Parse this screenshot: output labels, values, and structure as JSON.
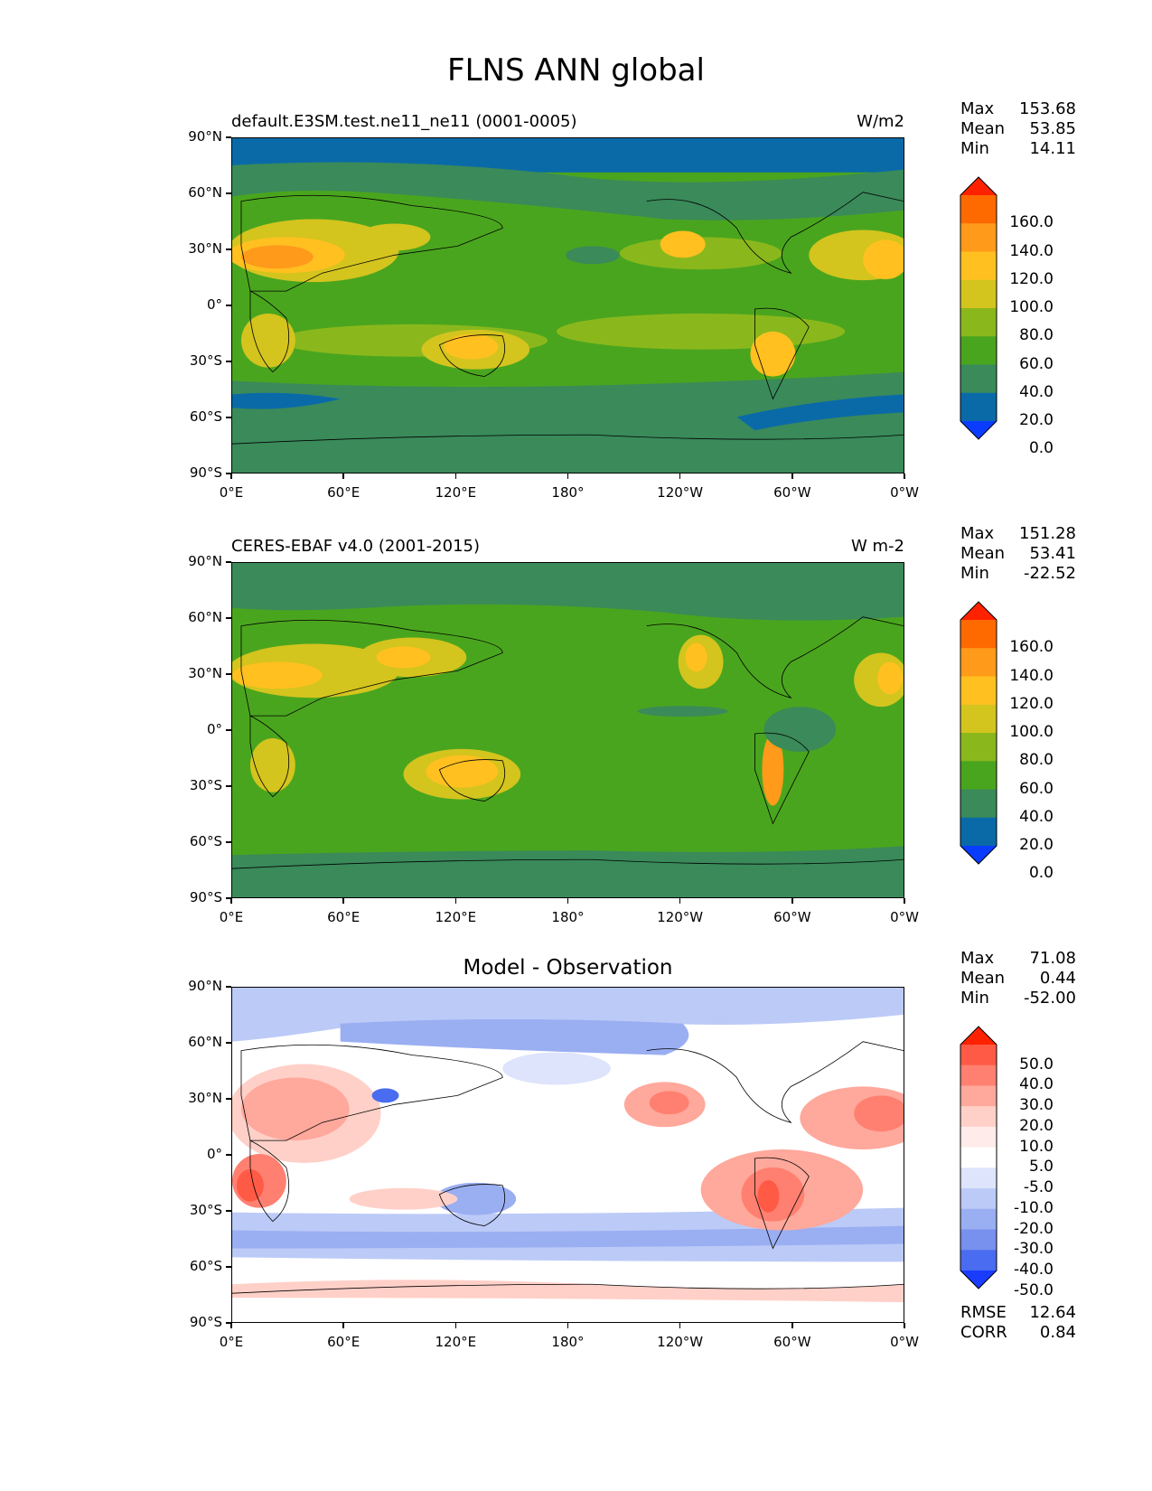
{
  "title": "FLNS ANN global",
  "lat_labels": [
    "90°N",
    "60°N",
    "30°N",
    "0°",
    "30°S",
    "60°S",
    "90°S"
  ],
  "lon_labels": [
    "0°E",
    "60°E",
    "120°E",
    "180°",
    "120°W",
    "60°W",
    "0°W"
  ],
  "panels": [
    {
      "title": "default.E3SM.test.ne11_ne11 (0001-0005)",
      "units": "W/m2",
      "stats": {
        "max_label": "Max",
        "max": "153.68",
        "mean_label": "Mean",
        "mean": "53.85",
        "min_label": "Min",
        "min": "14.11"
      },
      "colorbar_labels": [
        "160.0",
        "140.0",
        "120.0",
        "100.0",
        "80.0",
        "60.0",
        "40.0",
        "20.0",
        "0.0"
      ],
      "colorbar_colors": [
        "#ff2200",
        "#ff6a00",
        "#ff9a1a",
        "#ffc020",
        "#d4c41e",
        "#8ab81c",
        "#4aa51e",
        "#3a8a5a",
        "#0a6aa8",
        "#0a3cff"
      ]
    },
    {
      "title": "CERES-EBAF v4.0 (2001-2015)",
      "units": "W m-2",
      "stats": {
        "max_label": "Max",
        "max": "151.28",
        "mean_label": "Mean",
        "mean": "53.41",
        "min_label": "Min",
        "min": "-22.52"
      },
      "colorbar_labels": [
        "160.0",
        "140.0",
        "120.0",
        "100.0",
        "80.0",
        "60.0",
        "40.0",
        "20.0",
        "0.0"
      ],
      "colorbar_colors": [
        "#ff2200",
        "#ff6a00",
        "#ff9a1a",
        "#ffc020",
        "#d4c41e",
        "#8ab81c",
        "#4aa51e",
        "#3a8a5a",
        "#0a6aa8",
        "#0a3cff"
      ]
    },
    {
      "title": "Model - Observation",
      "units": "",
      "stats": {
        "max_label": "Max",
        "max": "71.08",
        "mean_label": "Mean",
        "mean": "0.44",
        "min_label": "Min",
        "min": "-52.00"
      },
      "colorbar_labels": [
        "50.0",
        "40.0",
        "30.0",
        "20.0",
        "10.0",
        "5.0",
        "-5.0",
        "-10.0",
        "-20.0",
        "-30.0",
        "-40.0",
        "-50.0"
      ],
      "colorbar_colors": [
        "#ff2200",
        "#ff5a46",
        "#ff8070",
        "#ffa89c",
        "#ffd0c8",
        "#ffecea",
        "#ffffff",
        "#dde4fb",
        "#bccaf7",
        "#9aaef2",
        "#7890ee",
        "#4a6cf0",
        "#1a3cff"
      ],
      "rmse_label": "RMSE",
      "rmse": "12.64",
      "corr_label": "CORR",
      "corr": "0.84"
    }
  ]
}
